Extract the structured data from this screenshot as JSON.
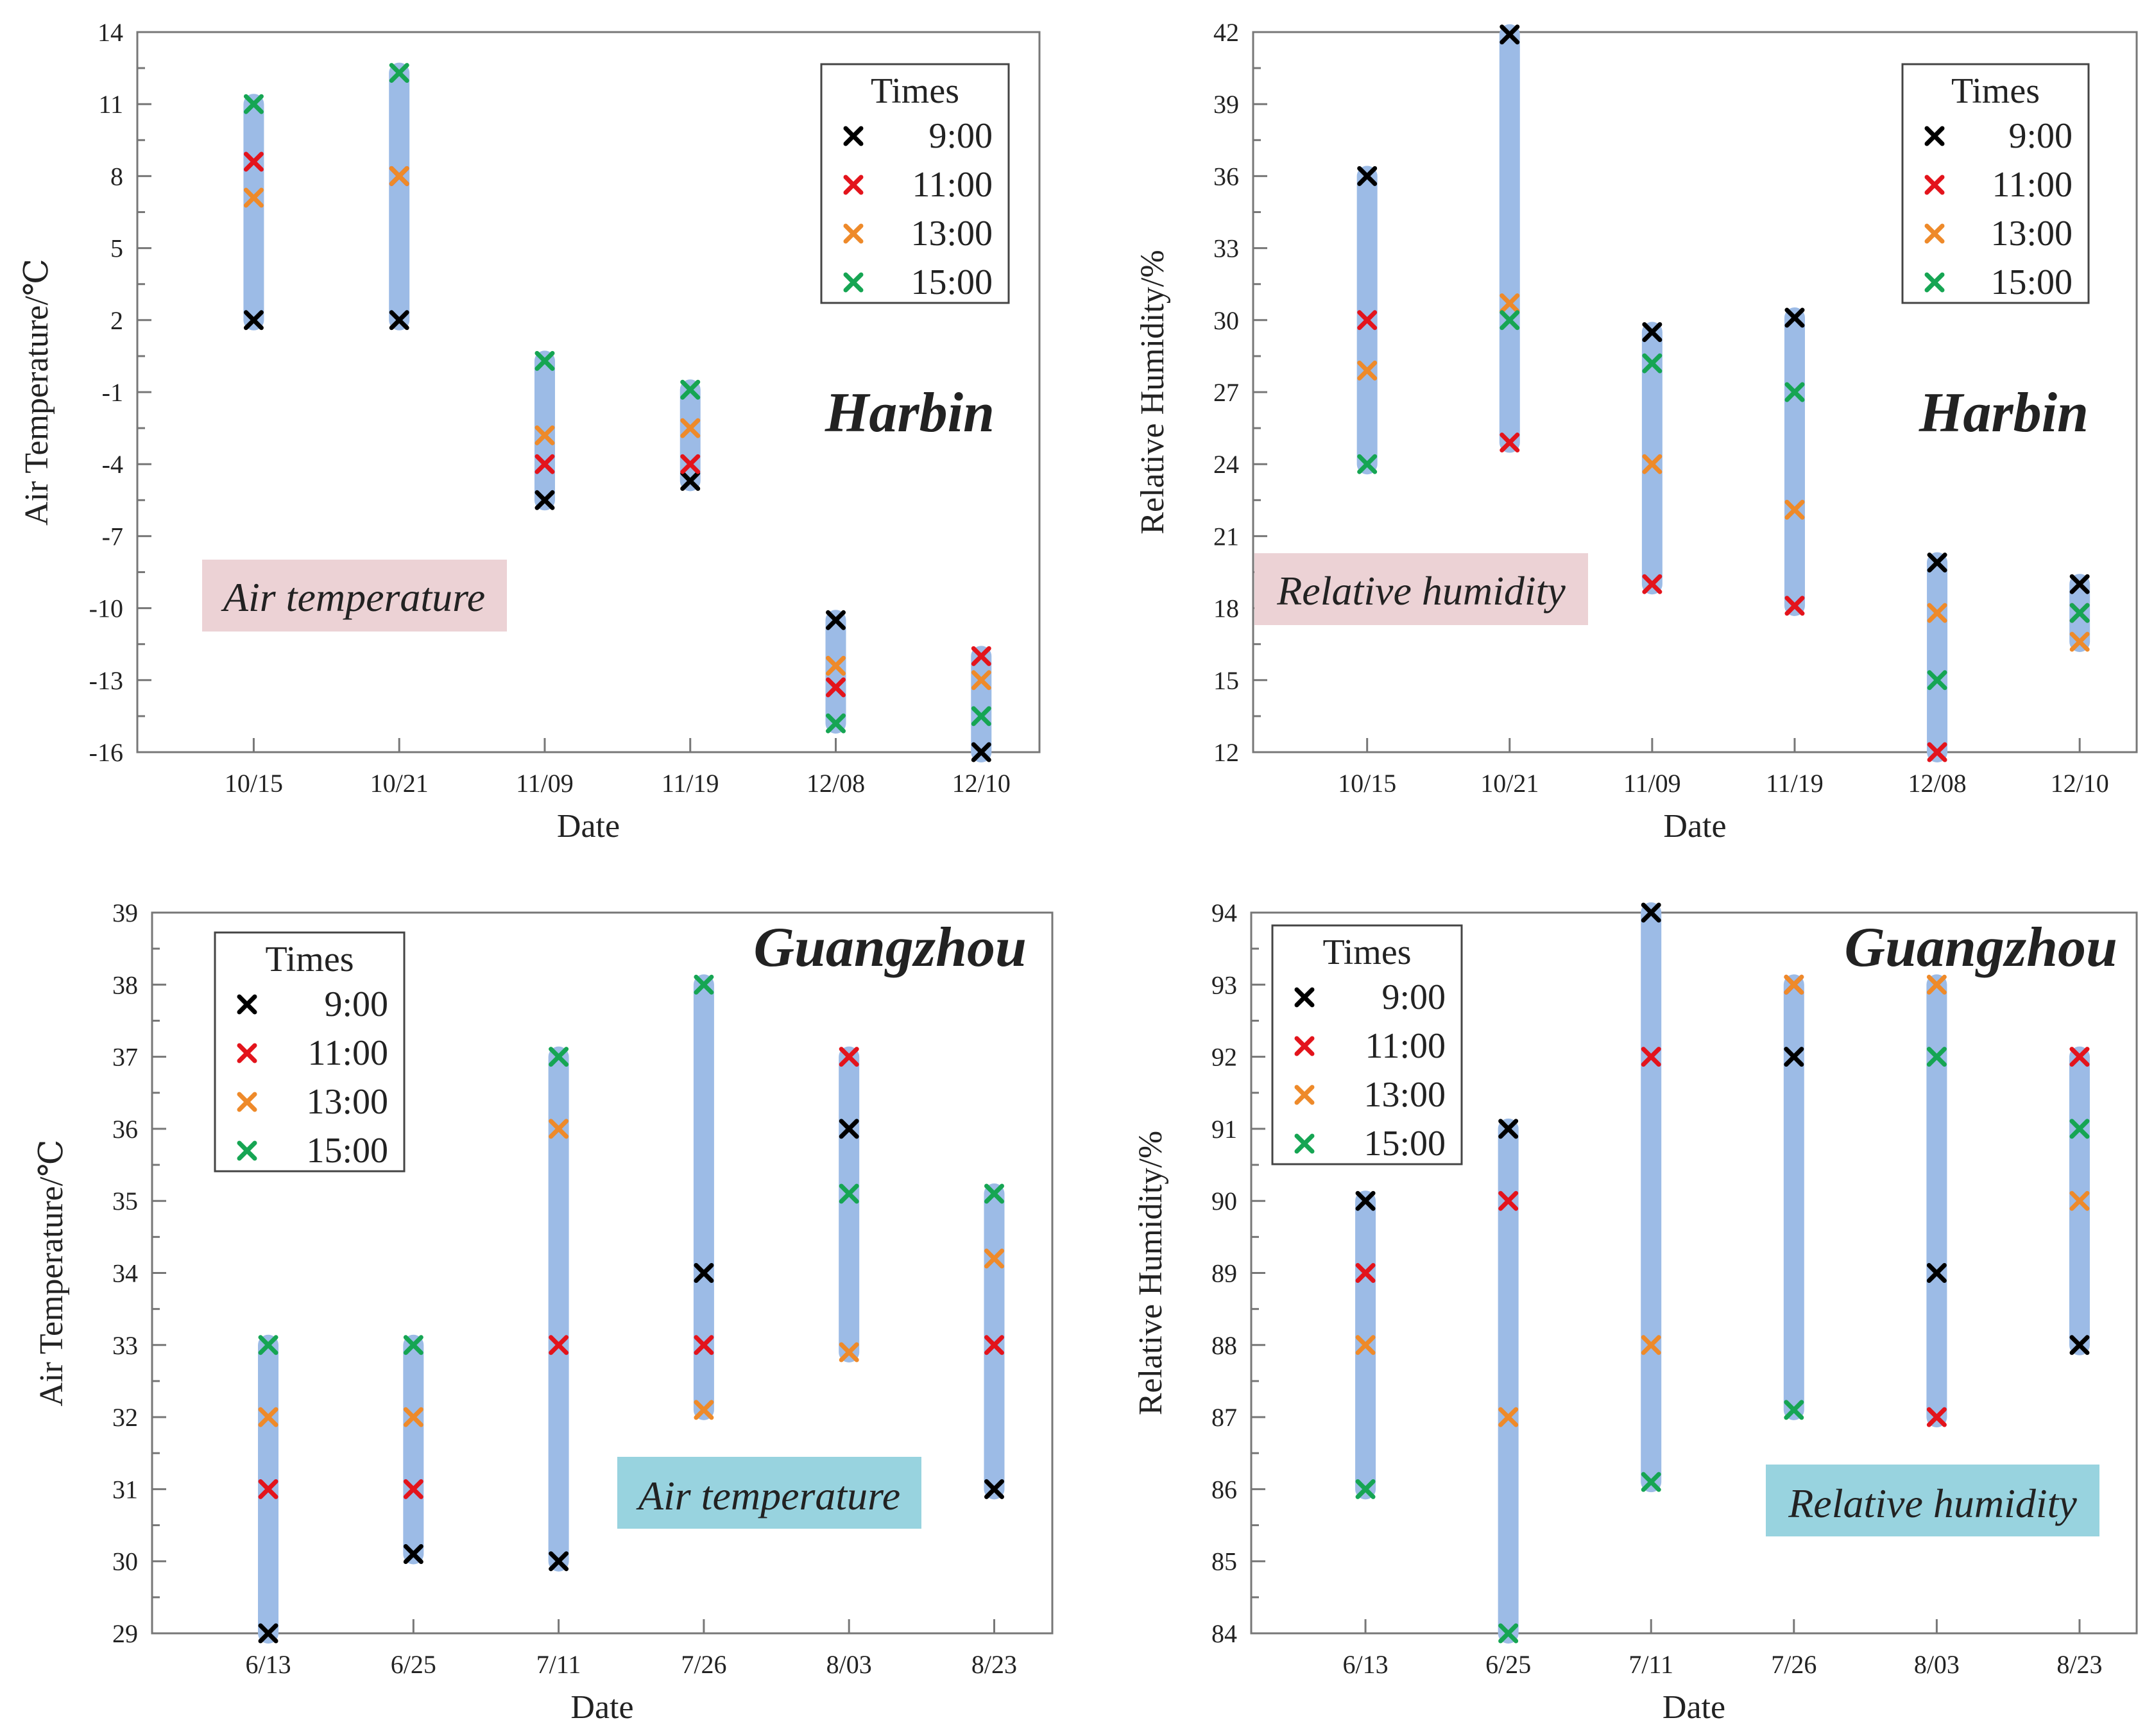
{
  "legend_title": "Times",
  "series_colors": {
    "9:00": "#000000",
    "11:00": "#e3141c",
    "13:00": "#ee8a2a",
    "15:00": "#16a553"
  },
  "range_bar_color": "#9cbbe6",
  "chart_data": [
    {
      "type": "scatter",
      "panel": "top-left",
      "title": "Harbin",
      "tag": "Air temperature",
      "xlabel": "Date",
      "ylabel": "Air Temperature/℃",
      "ylim": [
        -16,
        14
      ],
      "yticks": [
        -16,
        -13,
        -10,
        -7,
        -4,
        -1,
        2,
        5,
        8,
        11,
        14
      ],
      "ytick_labels": [
        "-16",
        "-13",
        "-10",
        "-7",
        "-4",
        "-1",
        "2",
        "5",
        "8",
        "11",
        "14"
      ],
      "categories": [
        "10/15",
        "10/21",
        "11/09",
        "11/19",
        "12/08",
        "12/10"
      ],
      "legend_position": "top-right",
      "series": [
        {
          "name": "9:00",
          "values": [
            2,
            2,
            -5.5,
            -4.7,
            -10.5,
            -16
          ]
        },
        {
          "name": "11:00",
          "values": [
            8.6,
            8,
            -4,
            -4,
            -13.3,
            -12
          ]
        },
        {
          "name": "13:00",
          "values": [
            7.1,
            8,
            -2.8,
            -2.5,
            -12.4,
            -13
          ]
        },
        {
          "name": "15:00",
          "values": [
            11,
            12.3,
            0.3,
            -0.9,
            -14.8,
            -14.5
          ]
        }
      ]
    },
    {
      "type": "scatter",
      "panel": "top-right",
      "title": "Harbin",
      "tag": "Relative humidity",
      "xlabel": "Date",
      "ylabel": "Relative Humidity/%",
      "ylim": [
        12,
        42
      ],
      "yticks": [
        12,
        15,
        18,
        21,
        24,
        27,
        30,
        33,
        36,
        39,
        42
      ],
      "ytick_labels": [
        "12",
        "15",
        "18",
        "21",
        "24",
        "27",
        "30",
        "33",
        "36",
        "39",
        "42"
      ],
      "categories": [
        "10/15",
        "10/21",
        "11/09",
        "11/19",
        "12/08",
        "12/10"
      ],
      "legend_position": "top-right",
      "series": [
        {
          "name": "9:00",
          "values": [
            36,
            41.9,
            29.5,
            30.1,
            19.9,
            19
          ]
        },
        {
          "name": "11:00",
          "values": [
            30,
            24.9,
            19,
            18.1,
            12,
            17.8
          ]
        },
        {
          "name": "13:00",
          "values": [
            27.9,
            30.7,
            24,
            22.1,
            17.8,
            16.6
          ]
        },
        {
          "name": "15:00",
          "values": [
            24,
            30,
            28.2,
            27,
            15,
            17.8
          ]
        }
      ]
    },
    {
      "type": "scatter",
      "panel": "bottom-left",
      "title": "Guangzhou",
      "tag": "Air temperature",
      "xlabel": "Date",
      "ylabel": "Air Temperature/℃",
      "ylim": [
        29,
        39
      ],
      "yticks": [
        29,
        30,
        31,
        32,
        33,
        34,
        35,
        36,
        37,
        38,
        39
      ],
      "ytick_labels": [
        "29",
        "30",
        "31",
        "32",
        "33",
        "34",
        "35",
        "36",
        "37",
        "38",
        "39"
      ],
      "categories": [
        "6/13",
        "6/25",
        "7/11",
        "7/26",
        "8/03",
        "8/23"
      ],
      "legend_position": "top-left",
      "series": [
        {
          "name": "9:00",
          "values": [
            29,
            30.1,
            30,
            34,
            36,
            31
          ]
        },
        {
          "name": "11:00",
          "values": [
            31,
            31,
            33,
            33,
            37,
            33
          ]
        },
        {
          "name": "13:00",
          "values": [
            32,
            32,
            36,
            32.1,
            32.9,
            34.2
          ]
        },
        {
          "name": "15:00",
          "values": [
            33,
            33,
            37,
            38,
            35.1,
            35.1
          ]
        }
      ]
    },
    {
      "type": "scatter",
      "panel": "bottom-right",
      "title": "Guangzhou",
      "tag": "Relative humidity",
      "xlabel": "Date",
      "ylabel": "Relative Humidity/%",
      "ylim": [
        84,
        94
      ],
      "yticks": [
        84,
        85,
        86,
        87,
        88,
        89,
        90,
        91,
        92,
        93,
        94
      ],
      "ytick_labels": [
        "84",
        "85",
        "86",
        "87",
        "88",
        "89",
        "90",
        "91",
        "92",
        "93",
        "94"
      ],
      "categories": [
        "6/13",
        "6/25",
        "7/11",
        "7/26",
        "8/03",
        "8/23"
      ],
      "legend_position": "top-left",
      "series": [
        {
          "name": "9:00",
          "values": [
            90,
            91,
            94,
            92,
            89,
            88
          ]
        },
        {
          "name": "11:00",
          "values": [
            89,
            90,
            92,
            93,
            87,
            92
          ]
        },
        {
          "name": "13:00",
          "values": [
            88,
            87,
            88,
            93,
            93,
            90
          ]
        },
        {
          "name": "15:00",
          "values": [
            86,
            84,
            86.1,
            87.1,
            92,
            91
          ]
        }
      ]
    }
  ]
}
